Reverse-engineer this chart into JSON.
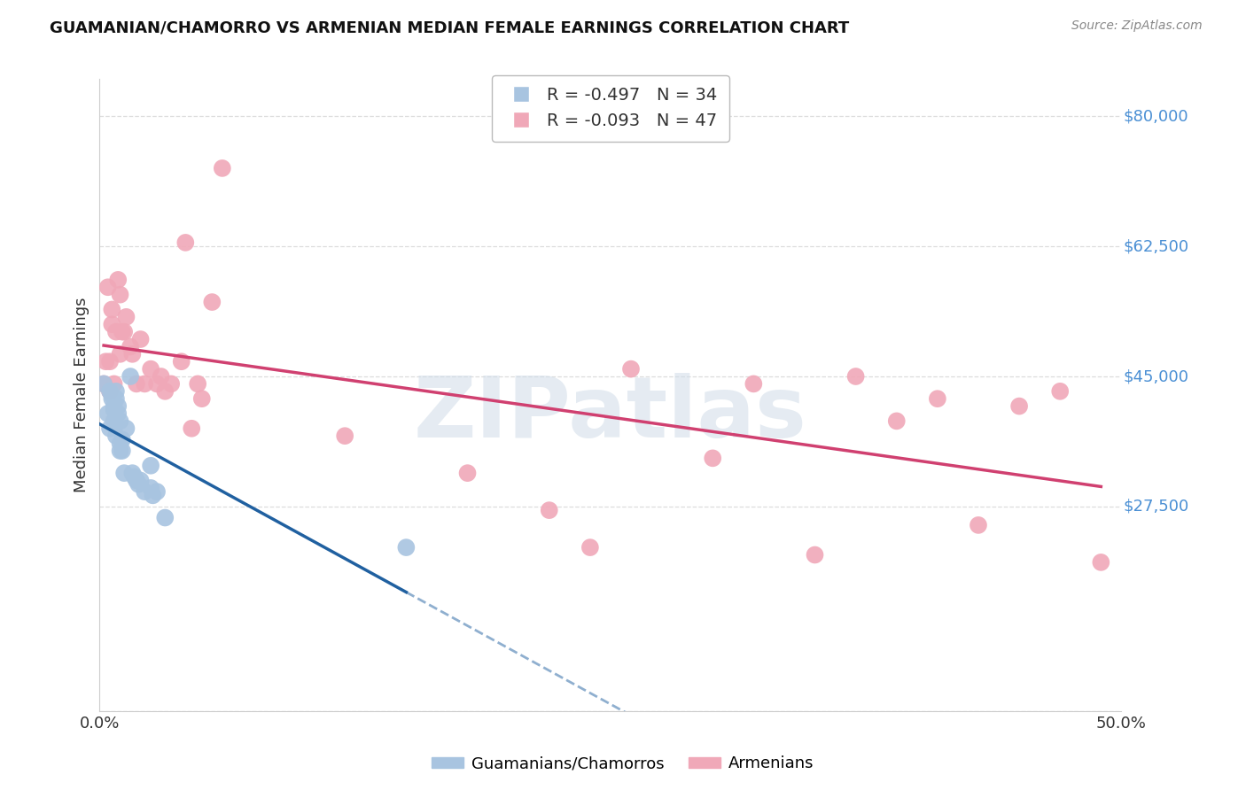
{
  "title": "GUAMANIAN/CHAMORRO VS ARMENIAN MEDIAN FEMALE EARNINGS CORRELATION CHART",
  "source": "Source: ZipAtlas.com",
  "ylabel": "Median Female Earnings",
  "ymin": 0,
  "ymax": 85000,
  "xmin": 0.0,
  "xmax": 0.5,
  "legend_blue_r": "-0.497",
  "legend_blue_n": "34",
  "legend_pink_r": "-0.093",
  "legend_pink_n": "47",
  "legend_label_blue": "Guamanians/Chamorros",
  "legend_label_pink": "Armenians",
  "blue_scatter_color": "#a8c4e0",
  "pink_scatter_color": "#f0a8b8",
  "blue_line_color": "#2060a0",
  "pink_line_color": "#d04070",
  "watermark": "ZIPatlas",
  "watermark_color": "#d0dce8",
  "background_color": "#ffffff",
  "grid_color": "#dddddd",
  "ytick_positions": [
    27500,
    45000,
    62500,
    80000
  ],
  "ytick_labels": [
    "$27,500",
    "$45,000",
    "$62,500",
    "$80,000"
  ],
  "xtick_positions": [
    0.0,
    0.1,
    0.2,
    0.3,
    0.4,
    0.5
  ],
  "xtick_labels": [
    "0.0%",
    "",
    "",
    "",
    "",
    "50.0%"
  ],
  "guam_x": [
    0.002,
    0.004,
    0.005,
    0.005,
    0.006,
    0.006,
    0.007,
    0.007,
    0.007,
    0.008,
    0.008,
    0.008,
    0.009,
    0.009,
    0.01,
    0.01,
    0.01,
    0.011,
    0.011,
    0.012,
    0.013,
    0.015,
    0.016,
    0.017,
    0.018,
    0.019,
    0.02,
    0.022,
    0.025,
    0.025,
    0.026,
    0.028,
    0.032,
    0.15
  ],
  "guam_y": [
    44000,
    40000,
    38000,
    43000,
    42000,
    42500,
    41000,
    40500,
    39000,
    43000,
    42000,
    37000,
    40000,
    41000,
    36000,
    35000,
    39000,
    36500,
    35000,
    32000,
    38000,
    45000,
    32000,
    31500,
    31000,
    30500,
    31000,
    29500,
    33000,
    30000,
    29000,
    29500,
    26000,
    22000
  ],
  "armen_x": [
    0.002,
    0.003,
    0.004,
    0.005,
    0.005,
    0.006,
    0.006,
    0.007,
    0.008,
    0.009,
    0.01,
    0.01,
    0.011,
    0.012,
    0.013,
    0.015,
    0.016,
    0.018,
    0.02,
    0.022,
    0.025,
    0.028,
    0.03,
    0.032,
    0.035,
    0.04,
    0.042,
    0.045,
    0.048,
    0.05,
    0.055,
    0.06,
    0.12,
    0.18,
    0.22,
    0.24,
    0.26,
    0.3,
    0.32,
    0.35,
    0.37,
    0.39,
    0.41,
    0.43,
    0.45,
    0.47,
    0.49
  ],
  "armen_y": [
    44000,
    47000,
    57000,
    43000,
    47000,
    52000,
    54000,
    44000,
    51000,
    58000,
    56000,
    48000,
    51000,
    51000,
    53000,
    49000,
    48000,
    44000,
    50000,
    44000,
    46000,
    44000,
    45000,
    43000,
    44000,
    47000,
    63000,
    38000,
    44000,
    42000,
    55000,
    73000,
    37000,
    32000,
    27000,
    22000,
    46000,
    34000,
    44000,
    21000,
    45000,
    39000,
    42000,
    25000,
    41000,
    43000,
    20000
  ]
}
